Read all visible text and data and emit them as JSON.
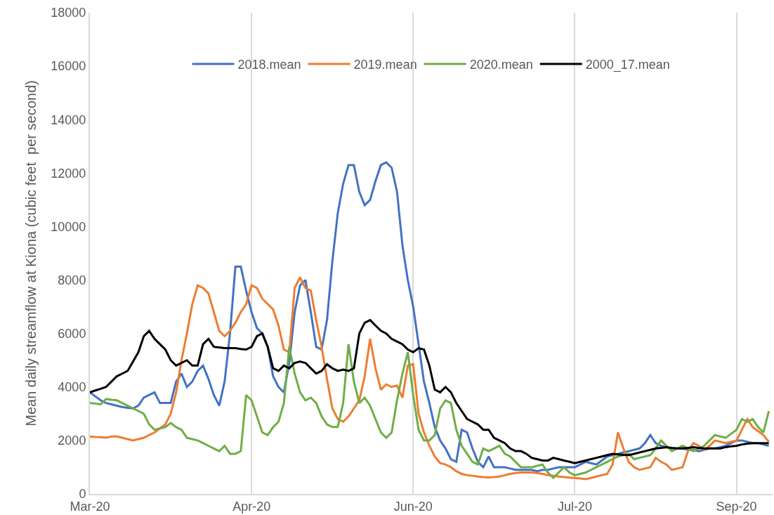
{
  "chart_data": {
    "type": "line",
    "ylabel": "Mean daily streamflow at Kiona (cubic feet  per second)",
    "categories": [
      "Mar-20",
      null,
      null,
      null,
      null,
      null,
      null,
      null,
      null,
      null,
      null,
      null,
      null,
      null,
      null,
      null,
      null,
      null,
      null,
      null,
      null,
      null,
      null,
      null,
      null,
      null,
      null,
      null,
      null,
      null,
      "Apr-20",
      null,
      null,
      null,
      null,
      null,
      null,
      null,
      null,
      null,
      null,
      null,
      null,
      null,
      null,
      null,
      null,
      null,
      null,
      null,
      null,
      null,
      null,
      null,
      null,
      null,
      null,
      null,
      null,
      null,
      "Jun-20",
      null,
      null,
      null,
      null,
      null,
      null,
      null,
      null,
      null,
      null,
      null,
      null,
      null,
      null,
      null,
      null,
      null,
      null,
      null,
      null,
      null,
      null,
      null,
      null,
      null,
      null,
      null,
      null,
      null,
      "Jul-20",
      null,
      null,
      null,
      null,
      null,
      null,
      null,
      null,
      null,
      null,
      null,
      null,
      null,
      null,
      null,
      null,
      null,
      null,
      null,
      null,
      null,
      null,
      null,
      null,
      null,
      null,
      null,
      null,
      null,
      "Sep-20",
      null,
      null,
      null,
      null,
      null,
      null
    ],
    "ylim": [
      0,
      18000
    ],
    "yticks": [
      0,
      2000,
      4000,
      6000,
      8000,
      10000,
      12000,
      14000,
      16000,
      18000
    ],
    "grid": "x",
    "legend": "top",
    "line_style": "solid",
    "series": [
      {
        "name": "2018.mean",
        "color": "#4472c4",
        "values": [
          3800,
          3650,
          3500,
          3400,
          3350,
          3300,
          3250,
          3220,
          3200,
          3300,
          3600,
          3700,
          3800,
          3400,
          3400,
          3400,
          4200,
          4500,
          4000,
          4200,
          4600,
          4800,
          4300,
          3700,
          3300,
          4200,
          6000,
          8500,
          8500,
          7600,
          6800,
          6200,
          6000,
          5500,
          4400,
          4000,
          3800,
          4900,
          6800,
          7800,
          8000,
          6800,
          5500,
          5400,
          6500,
          8700,
          10500,
          11600,
          12300,
          12300,
          11300,
          10800,
          11000,
          11700,
          12300,
          12400,
          12200,
          11300,
          9300,
          8000,
          7000,
          5600,
          4200,
          3400,
          2500,
          2000,
          1700,
          1300,
          1200,
          2400,
          2300,
          1700,
          1200,
          1000,
          1400,
          1000,
          1000,
          1000,
          950,
          900,
          900,
          900,
          900,
          850,
          900,
          900,
          950,
          1000,
          1000,
          1000,
          1000,
          1100,
          1200,
          1150,
          1100,
          1250,
          1400,
          1450,
          1500,
          1550,
          1600,
          1650,
          1700,
          1900,
          2200,
          1900,
          1800,
          1750,
          1700,
          1700,
          1700,
          1650,
          1650,
          1600,
          1650,
          1700,
          1700,
          1750,
          1800,
          1900,
          2000,
          2000,
          1950,
          1900,
          1900,
          1850,
          1800
        ]
      },
      {
        "name": "2019.mean",
        "color": "#ed7d31",
        "values": [
          2150,
          2130,
          2120,
          2100,
          2150,
          2150,
          2100,
          2050,
          2000,
          2050,
          2100,
          2200,
          2300,
          2450,
          2600,
          3000,
          3800,
          5000,
          6000,
          7100,
          7800,
          7700,
          7500,
          6800,
          6100,
          5900,
          6100,
          6400,
          6800,
          7100,
          7800,
          7700,
          7300,
          7100,
          6900,
          6300,
          5400,
          5300,
          7700,
          8100,
          7700,
          7600,
          6500,
          5500,
          4300,
          3200,
          2800,
          2700,
          2900,
          3200,
          3500,
          4400,
          5800,
          4700,
          3900,
          4100,
          4000,
          4050,
          3600,
          4800,
          4850,
          3000,
          2300,
          1800,
          1400,
          1150,
          1100,
          1000,
          850,
          750,
          700,
          680,
          650,
          630,
          620,
          630,
          650,
          700,
          750,
          780,
          800,
          800,
          800,
          780,
          750,
          700,
          680,
          650,
          630,
          610,
          600,
          580,
          550,
          600,
          650,
          700,
          750,
          1100,
          2300,
          1700,
          1200,
          1000,
          900,
          950,
          1000,
          1350,
          1200,
          1100,
          900,
          950,
          1000,
          1600,
          1900,
          1800,
          1650,
          1800,
          2000,
          1950,
          1900,
          1950,
          2000,
          2400,
          2800,
          2500,
          2350,
          2200,
          1950
        ]
      },
      {
        "name": "2020.mean",
        "color": "#70ad47",
        "values": [
          3400,
          3380,
          3350,
          3550,
          3520,
          3500,
          3400,
          3300,
          3200,
          3100,
          3000,
          2600,
          2400,
          2450,
          2500,
          2650,
          2500,
          2400,
          2100,
          2050,
          2000,
          1900,
          1800,
          1700,
          1600,
          1800,
          1500,
          1500,
          1600,
          3700,
          3500,
          2900,
          2300,
          2200,
          2500,
          2700,
          3400,
          5500,
          4500,
          3800,
          3500,
          3600,
          3400,
          2900,
          2600,
          2500,
          2500,
          3400,
          5600,
          4200,
          3400,
          3600,
          3300,
          2800,
          2300,
          2100,
          2300,
          3500,
          4500,
          5300,
          3700,
          2400,
          2000,
          2000,
          2200,
          3200,
          3500,
          3400,
          2400,
          1800,
          1500,
          1200,
          1100,
          1700,
          1600,
          1700,
          1800,
          1500,
          1400,
          1200,
          1000,
          1000,
          1000,
          1050,
          1100,
          800,
          600,
          800,
          1000,
          800,
          700,
          750,
          800,
          900,
          1000,
          1100,
          1200,
          1300,
          1400,
          1450,
          1500,
          1300,
          1350,
          1400,
          1450,
          1700,
          2000,
          1800,
          1600,
          1700,
          1800,
          1700,
          1600,
          1700,
          1800,
          2000,
          2200,
          2150,
          2100,
          2250,
          2400,
          2800,
          2700,
          2800,
          2500,
          2300,
          3100
        ]
      },
      {
        "name": "2000_17.mean",
        "color": "#000000",
        "values": [
          3800,
          3870,
          3930,
          4000,
          4200,
          4400,
          4500,
          4600,
          4950,
          5300,
          5900,
          6100,
          5800,
          5600,
          5400,
          5000,
          4800,
          4900,
          5000,
          4800,
          4800,
          5600,
          5800,
          5500,
          5480,
          5450,
          5450,
          5450,
          5420,
          5400,
          5500,
          5900,
          6000,
          5500,
          4700,
          4600,
          4800,
          4700,
          4900,
          4950,
          4900,
          4700,
          4500,
          4600,
          4850,
          4700,
          4600,
          4650,
          4600,
          4700,
          6000,
          6400,
          6500,
          6300,
          6100,
          6000,
          5800,
          5700,
          5600,
          5400,
          5300,
          5450,
          5400,
          4800,
          3900,
          3800,
          4000,
          3800,
          3400,
          3100,
          2800,
          2700,
          2600,
          2400,
          2400,
          2100,
          2000,
          1900,
          1700,
          1600,
          1600,
          1500,
          1350,
          1300,
          1250,
          1250,
          1350,
          1300,
          1250,
          1200,
          1150,
          1200,
          1250,
          1300,
          1350,
          1400,
          1450,
          1500,
          1480,
          1460,
          1450,
          1500,
          1550,
          1600,
          1650,
          1700,
          1720,
          1750,
          1720,
          1700,
          1700,
          1720,
          1750,
          1720,
          1700,
          1700,
          1700,
          1700,
          1750,
          1780,
          1800,
          1850,
          1880,
          1900,
          1900,
          1900,
          1900
        ]
      }
    ]
  }
}
